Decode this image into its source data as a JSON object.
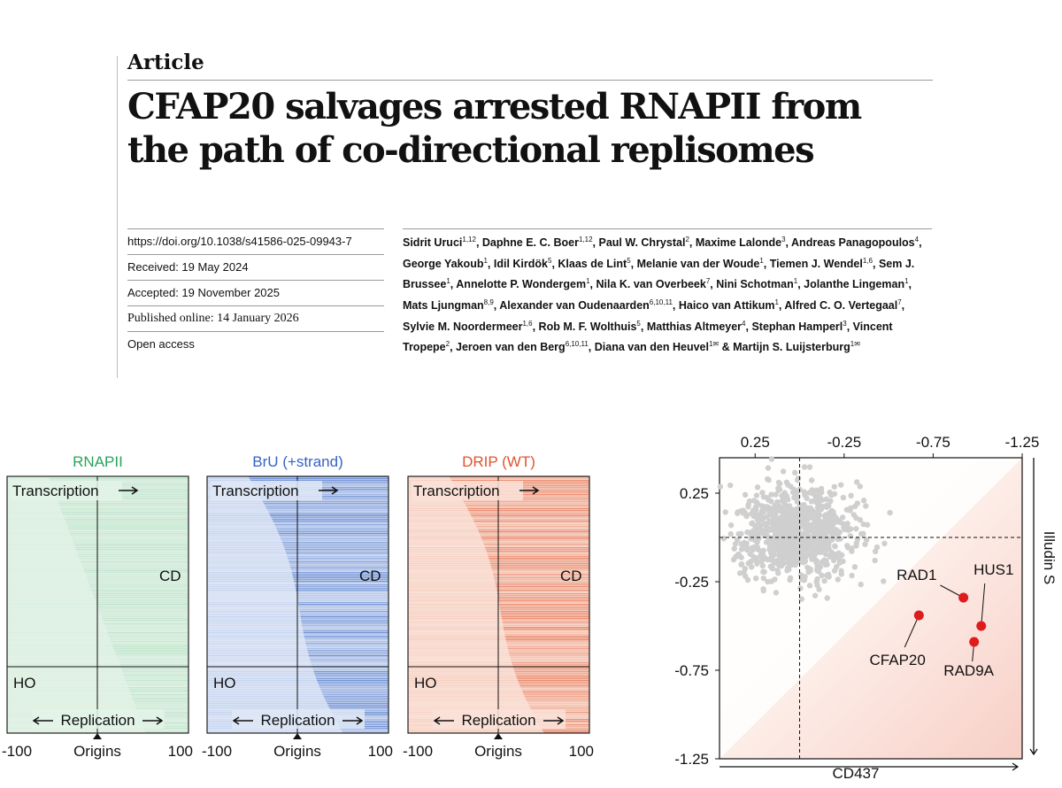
{
  "article": {
    "label": "Article",
    "title": "CFAP20 salvages arrested RNAPII from the path of co-directional replisomes",
    "meta": [
      "https://doi.org/10.1038/s41586-025-09943-7",
      "Received: 19 May 2024",
      "Accepted: 19 November 2025",
      "Published online: 14 January 2026",
      "Open access"
    ],
    "authors": [
      {
        "name": "Sidrit Uruci",
        "sup": "1,12"
      },
      {
        "name": "Daphne E. C. Boer",
        "sup": "1,12"
      },
      {
        "name": "Paul W. Chrystal",
        "sup": "2"
      },
      {
        "name": "Maxime Lalonde",
        "sup": "3"
      },
      {
        "name": "Andreas Panagopoulos",
        "sup": "4"
      },
      {
        "name": "George Yakoub",
        "sup": "1"
      },
      {
        "name": "Idil Kirdök",
        "sup": "5"
      },
      {
        "name": "Klaas de Lint",
        "sup": "5"
      },
      {
        "name": "Melanie van der Woude",
        "sup": "1"
      },
      {
        "name": "Tiemen J. Wendel",
        "sup": "1,6"
      },
      {
        "name": "Sem J. Brussee",
        "sup": "1"
      },
      {
        "name": "Annelotte P. Wondergem",
        "sup": "1"
      },
      {
        "name": "Nila K. van Overbeek",
        "sup": "7"
      },
      {
        "name": "Nini Schotman",
        "sup": "1"
      },
      {
        "name": "Jolanthe Lingeman",
        "sup": "1"
      },
      {
        "name": "Mats Ljungman",
        "sup": "8,9"
      },
      {
        "name": "Alexander van Oudenaarden",
        "sup": "6,10,11"
      },
      {
        "name": "Haico van Attikum",
        "sup": "1"
      },
      {
        "name": "Alfred C. O. Vertegaal",
        "sup": "7"
      },
      {
        "name": "Sylvie M. Noordermeer",
        "sup": "1,6"
      },
      {
        "name": "Rob M. F. Wolthuis",
        "sup": "5"
      },
      {
        "name": "Matthias Altmeyer",
        "sup": "4"
      },
      {
        "name": "Stephan Hamperl",
        "sup": "3"
      },
      {
        "name": "Vincent Tropepe",
        "sup": "2"
      },
      {
        "name": "Jeroen van den Berg",
        "sup": "6,10,11"
      },
      {
        "name": "Diana van den Heuvel",
        "sup": "1✉"
      },
      {
        "name": "Martijn S. Luijsterburg",
        "sup": "1✉"
      }
    ],
    "author_join": "&"
  },
  "heatmaps": [
    {
      "title": "RNAPII",
      "color": "#27a55a",
      "light": "#e3f3e7",
      "mid": "#b6dfc0"
    },
    {
      "title": "BrU (+strand)",
      "color": "#3563c4",
      "light": "#dfe7f6",
      "mid": "#9fb6e6"
    },
    {
      "title": "DRIP (WT)",
      "color": "#e0532b",
      "light": "#fae2d8",
      "mid": "#f3b29d"
    }
  ],
  "heatmap_labels": {
    "transcription": "Transcription",
    "replication": "Replication",
    "cd": "CD",
    "ho": "HO",
    "origins": "Origins",
    "x_min": "-100",
    "x_max": "100"
  },
  "chart_data": {
    "type": "scatter",
    "title": "",
    "xlabel": "CD437",
    "ylabel": "Illudin S",
    "xlim": [
      0.45,
      -1.25
    ],
    "ylim": [
      -1.25,
      0.45
    ],
    "x_ticks": [
      0.25,
      -0.25,
      -0.75,
      -1.25
    ],
    "x_tick_labels": [
      "0.25",
      "-0.25",
      "-0.75",
      "-1.25"
    ],
    "y_ticks": [
      0.25,
      -0.25,
      -0.75,
      -1.25
    ],
    "y_tick_labels": [
      "0.25",
      "-0.25",
      "-0.75",
      "-1.25"
    ],
    "threshold_x": 0.0,
    "threshold_y": 0.0,
    "background_cloud": {
      "center": [
        0.02,
        0.02
      ],
      "spread": [
        0.16,
        0.13
      ],
      "n": 900,
      "color": "#cfcfcf"
    },
    "highlighted": [
      {
        "label": "CFAP20",
        "x": -0.67,
        "y": -0.44
      },
      {
        "label": "RAD1",
        "x": -0.92,
        "y": -0.34
      },
      {
        "label": "HUS1",
        "x": -1.02,
        "y": -0.5
      },
      {
        "label": "RAD9A",
        "x": -0.98,
        "y": -0.59
      }
    ],
    "highlight_color": "#e01b1b"
  }
}
